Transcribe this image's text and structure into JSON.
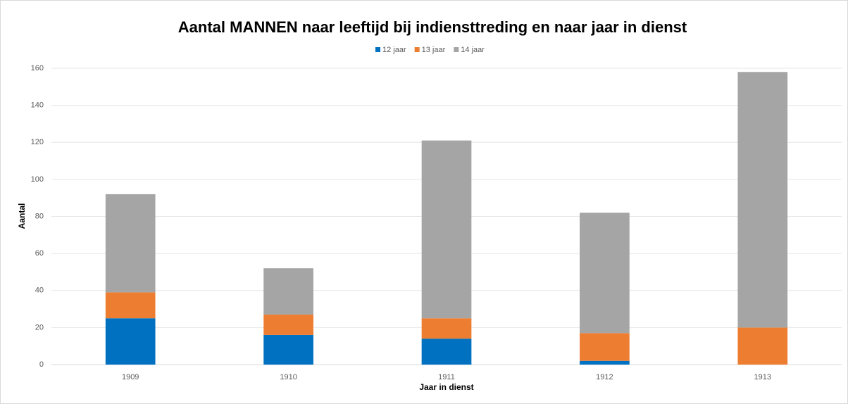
{
  "chart_data": {
    "type": "stacked_bar",
    "title": "Aantal MANNEN naar leeftijd bij indiensttreding en naar jaar in dienst",
    "x_label": "Jaar in dienst",
    "y_label": "Aantal",
    "categories": [
      "1909",
      "1910",
      "1911",
      "1912",
      "1913"
    ],
    "series": [
      {
        "name": "12 jaar",
        "color": "#0070c0",
        "values": [
          25,
          16,
          14,
          2,
          0
        ]
      },
      {
        "name": "13 jaar",
        "color": "#ed7d31",
        "values": [
          14,
          11,
          11,
          15,
          20
        ]
      },
      {
        "name": "14 jaar",
        "color": "#a5a5a5",
        "values": [
          53,
          25,
          96,
          65,
          138
        ]
      }
    ],
    "ylim": [
      0,
      160
    ],
    "yticks": [
      0,
      20,
      40,
      60,
      80,
      100,
      120,
      140,
      160
    ],
    "grid": true,
    "legend": "top"
  }
}
